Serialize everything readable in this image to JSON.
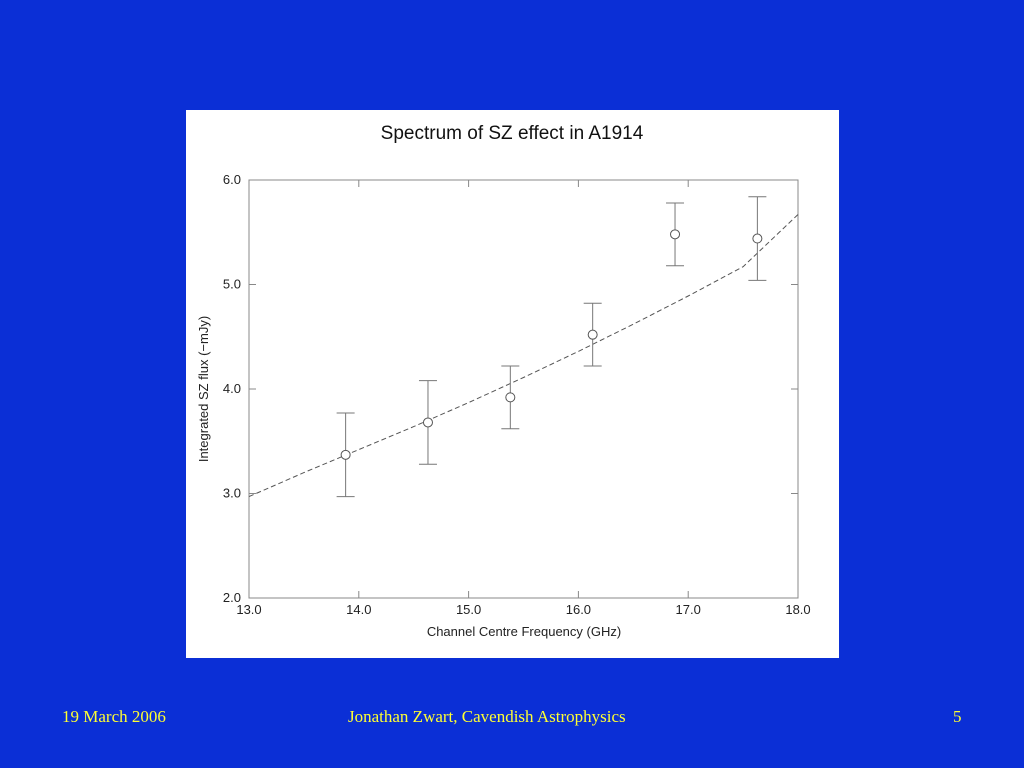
{
  "slide": {
    "date": "19 March 2006",
    "author": "Jonathan Zwart, Cavendish Astrophysics",
    "page": "5",
    "background_color": "#0b2fd6",
    "footer_color": "#ffff33"
  },
  "chart_data": {
    "type": "scatter",
    "title": "Spectrum of SZ effect in A1914",
    "xlabel": "Channel Centre Frequency (GHz)",
    "ylabel": "Integrated SZ flux (−mJy)",
    "xlim": [
      13.0,
      18.0
    ],
    "ylim": [
      2.0,
      6.0
    ],
    "xticks": [
      "13.0",
      "14.0",
      "15.0",
      "16.0",
      "17.0",
      "18.0"
    ],
    "yticks": [
      "2.0",
      "3.0",
      "4.0",
      "5.0",
      "6.0"
    ],
    "grid": false,
    "series": [
      {
        "kind": "points-with-errorbars",
        "marker": "open-circle",
        "x": [
          13.88,
          14.63,
          15.38,
          16.13,
          16.88,
          17.63
        ],
        "y": [
          3.37,
          3.68,
          3.92,
          4.52,
          5.48,
          5.44
        ],
        "yerr_low": [
          2.97,
          3.28,
          3.62,
          4.22,
          5.18,
          5.04
        ],
        "yerr_high": [
          3.77,
          4.08,
          4.22,
          4.82,
          5.78,
          5.84
        ]
      },
      {
        "kind": "model-curve",
        "style": "dashed",
        "x": [
          13.0,
          13.5,
          14.0,
          14.5,
          15.0,
          15.5,
          16.0,
          16.5,
          17.0,
          17.5,
          18.0
        ],
        "y": [
          2.97,
          3.2,
          3.42,
          3.64,
          3.87,
          4.11,
          4.36,
          4.62,
          4.89,
          5.17,
          5.67
        ]
      }
    ]
  }
}
